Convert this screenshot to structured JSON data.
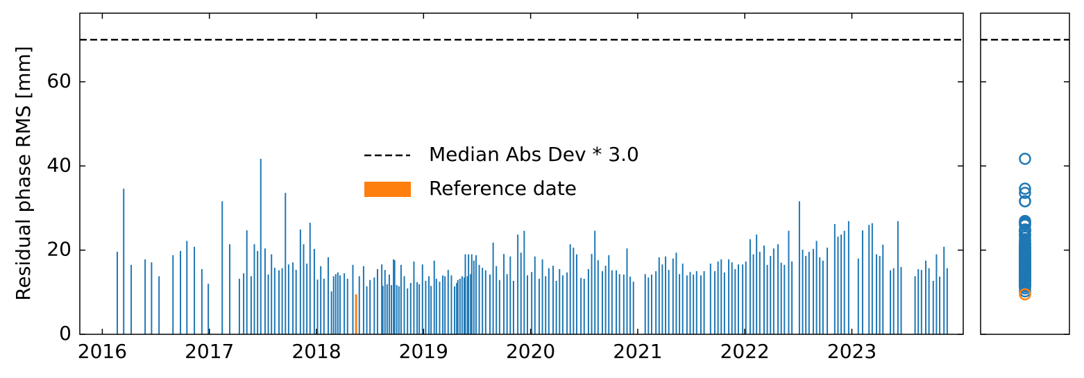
{
  "chart_data": {
    "type": "bar",
    "ylabel": "Residual phase RMS [mm]",
    "xlim": [
      2015.79,
      2024.04
    ],
    "xticks": [
      2016,
      2017,
      2018,
      2019,
      2020,
      2021,
      2022,
      2023
    ],
    "ylim": [
      0,
      76.3
    ],
    "yticks": [
      0,
      20,
      40,
      60
    ],
    "color": "#1f77b4",
    "x": [
      2016.14,
      2016.2,
      2016.27,
      2016.4,
      2016.46,
      2016.53,
      2016.66,
      2016.73,
      2016.79,
      2016.86,
      2016.93,
      2016.99,
      2017.12,
      2017.19,
      2017.28,
      2017.32,
      2017.35,
      2017.39,
      2017.42,
      2017.45,
      2017.48,
      2017.52,
      2017.55,
      2017.58,
      2017.61,
      2017.65,
      2017.68,
      2017.71,
      2017.74,
      2017.78,
      2017.81,
      2017.85,
      2017.88,
      2017.91,
      2017.94,
      2017.98,
      2018.01,
      2018.04,
      2018.07,
      2018.11,
      2018.14,
      2018.16,
      2018.18,
      2018.2,
      2018.22,
      2018.26,
      2018.29,
      2018.34,
      2018.4,
      2018.44,
      2018.47,
      2018.5,
      2018.54,
      2018.57,
      2018.61,
      2018.62,
      2018.64,
      2018.66,
      2018.68,
      2018.7,
      2018.72,
      2018.73,
      2018.75,
      2018.77,
      2018.79,
      2018.82,
      2018.85,
      2018.88,
      2018.91,
      2018.94,
      2018.96,
      2018.99,
      2019.02,
      2019.05,
      2019.07,
      2019.1,
      2019.12,
      2019.15,
      2019.18,
      2019.2,
      2019.23,
      2019.26,
      2019.29,
      2019.31,
      2019.32,
      2019.34,
      2019.36,
      2019.38,
      2019.39,
      2019.41,
      2019.42,
      2019.44,
      2019.45,
      2019.47,
      2019.49,
      2019.52,
      2019.55,
      2019.58,
      2019.62,
      2019.65,
      2019.68,
      2019.71,
      2019.75,
      2019.78,
      2019.81,
      2019.84,
      2019.88,
      2019.91,
      2019.94,
      2019.97,
      2020.01,
      2020.04,
      2020.08,
      2020.11,
      2020.14,
      2020.17,
      2020.21,
      2020.24,
      2020.27,
      2020.3,
      2020.34,
      2020.37,
      2020.4,
      2020.43,
      2020.47,
      2020.5,
      2020.54,
      2020.57,
      2020.6,
      2020.63,
      2020.67,
      2020.7,
      2020.73,
      2020.76,
      2020.8,
      2020.83,
      2020.87,
      2020.9,
      2020.93,
      2020.96,
      2021.07,
      2021.1,
      2021.13,
      2021.17,
      2021.2,
      2021.23,
      2021.26,
      2021.29,
      2021.33,
      2021.36,
      2021.39,
      2021.42,
      2021.46,
      2021.49,
      2021.52,
      2021.55,
      2021.59,
      2021.62,
      2021.68,
      2021.72,
      2021.75,
      2021.78,
      2021.81,
      2021.85,
      2021.88,
      2021.91,
      2021.94,
      2021.98,
      2022.01,
      2022.05,
      2022.08,
      2022.11,
      2022.14,
      2022.18,
      2022.21,
      2022.24,
      2022.27,
      2022.31,
      2022.34,
      2022.37,
      2022.41,
      2022.44,
      2022.51,
      2022.54,
      2022.57,
      2022.6,
      2022.64,
      2022.67,
      2022.7,
      2022.73,
      2022.77,
      2022.84,
      2022.87,
      2022.9,
      2022.93,
      2022.97,
      2023.06,
      2023.1,
      2023.16,
      2023.19,
      2023.23,
      2023.26,
      2023.29,
      2023.36,
      2023.39,
      2023.43,
      2023.46,
      2023.59,
      2023.62,
      2023.65,
      2023.69,
      2023.72,
      2023.76,
      2023.79,
      2023.82,
      2023.86,
      2023.89
    ],
    "values": [
      19.6,
      34.6,
      16.5,
      17.8,
      17.1,
      13.8,
      18.8,
      19.8,
      22.2,
      20.8,
      15.5,
      12.0,
      31.6,
      21.4,
      13.2,
      14.5,
      24.7,
      13.8,
      21.4,
      19.8,
      41.7,
      20.4,
      14.2,
      19.0,
      15.8,
      15.2,
      15.7,
      33.6,
      16.6,
      17.1,
      15.3,
      24.9,
      21.4,
      16.8,
      26.5,
      20.3,
      13.0,
      16.2,
      13.2,
      18.3,
      10.2,
      13.8,
      14.3,
      14.7,
      14.0,
      14.5,
      13.2,
      16.5,
      13.8,
      16.2,
      11.4,
      12.9,
      13.5,
      15.5,
      16.6,
      11.5,
      15.3,
      11.9,
      14.2,
      11.7,
      17.8,
      17.6,
      11.7,
      11.4,
      16.5,
      13.8,
      10.9,
      12.2,
      17.3,
      12.4,
      11.9,
      16.6,
      12.7,
      13.8,
      11.5,
      17.5,
      13.2,
      12.5,
      14.0,
      13.8,
      15.3,
      14.0,
      11.4,
      12.2,
      12.9,
      13.2,
      13.8,
      13.5,
      19.0,
      13.8,
      19.0,
      14.3,
      19.0,
      17.5,
      18.8,
      16.5,
      15.8,
      15.2,
      14.2,
      21.8,
      16.2,
      12.9,
      19.1,
      14.3,
      18.5,
      12.7,
      23.7,
      19.4,
      24.6,
      14.0,
      14.8,
      18.5,
      13.2,
      17.8,
      13.8,
      15.7,
      16.3,
      12.7,
      15.5,
      14.0,
      14.7,
      21.4,
      20.6,
      19.0,
      13.4,
      13.2,
      15.5,
      19.1,
      24.6,
      17.6,
      15.0,
      16.3,
      18.8,
      15.2,
      15.2,
      14.3,
      14.2,
      20.4,
      13.7,
      12.5,
      14.3,
      13.5,
      14.2,
      15.0,
      18.3,
      16.6,
      18.5,
      15.3,
      18.0,
      19.4,
      14.3,
      16.8,
      14.0,
      14.8,
      14.2,
      15.0,
      14.0,
      15.0,
      16.8,
      15.0,
      17.3,
      17.8,
      14.7,
      17.8,
      17.1,
      15.5,
      16.6,
      16.6,
      17.3,
      22.6,
      19.0,
      23.7,
      19.6,
      21.1,
      16.5,
      18.6,
      20.4,
      21.4,
      17.0,
      16.5,
      24.6,
      17.3,
      31.6,
      20.1,
      18.6,
      19.6,
      20.3,
      22.2,
      18.3,
      17.5,
      20.6,
      26.2,
      23.2,
      23.7,
      24.6,
      26.9,
      18.0,
      24.7,
      26.0,
      26.4,
      19.0,
      18.6,
      21.3,
      15.2,
      15.7,
      26.9,
      16.0,
      13.8,
      15.5,
      15.3,
      17.5,
      15.7,
      12.7,
      19.0,
      13.7,
      20.8,
      15.7
    ],
    "reference": {
      "name": "Reference date",
      "x": 2018.37,
      "value": 9.5,
      "color": "#ff7f0e"
    },
    "threshold": {
      "name": "Median Abs Dev * 3.0",
      "value": 70,
      "color": "#000000"
    }
  }
}
